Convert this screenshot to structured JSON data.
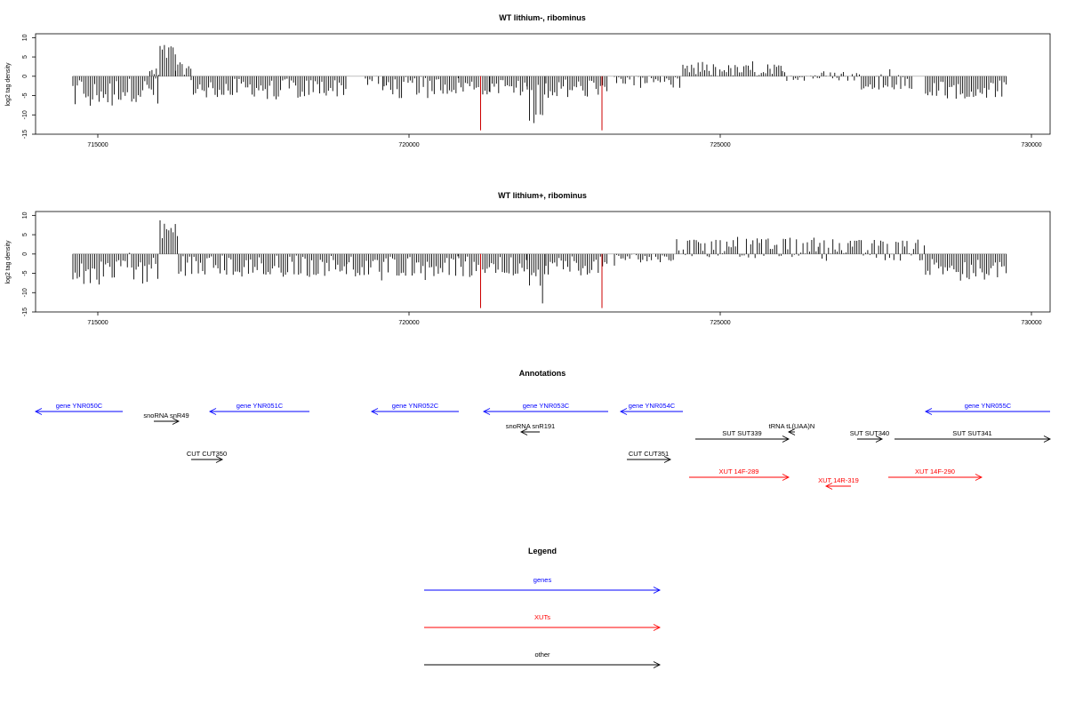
{
  "chart_data": [
    {
      "type": "bar",
      "title": "WT lithium-, ribominus",
      "ylabel": "log2 tag density",
      "xlabel": "",
      "xlim": [
        714000,
        730300
      ],
      "ylim": [
        -15,
        11
      ],
      "x_ticks": [
        715000,
        720000,
        725000,
        730000
      ],
      "x_tick_labels": [
        "715000",
        "720000",
        "725000",
        "730000"
      ],
      "y_ticks": [
        -15,
        -10,
        -5,
        0,
        5,
        10
      ],
      "y_tick_labels": [
        "-15",
        "-10",
        "-5",
        "0",
        "5",
        "10"
      ],
      "grid": false,
      "bar_color": "#000000",
      "highlight_color": "#cc0000",
      "segments": [
        {
          "start": 714600,
          "end": 716000,
          "min": -8,
          "max": 0,
          "avg": -3.5
        },
        {
          "start": 715800,
          "end": 716000,
          "min": 0,
          "max": 2.5,
          "avg": 1
        },
        {
          "start": 716000,
          "end": 716250,
          "min": 3,
          "max": 9,
          "avg": 6
        },
        {
          "start": 716250,
          "end": 716500,
          "min": 0,
          "max": 4,
          "avg": 2
        },
        {
          "start": 716500,
          "end": 719000,
          "min": -6,
          "max": 0,
          "avg": -3
        },
        {
          "start": 719300,
          "end": 719600,
          "min": -4,
          "max": 0,
          "avg": -1
        },
        {
          "start": 719600,
          "end": 720800,
          "min": -6,
          "max": 0,
          "avg": -2.5
        },
        {
          "start": 720800,
          "end": 721300,
          "min": -5,
          "max": 0,
          "avg": -2.5
        },
        {
          "start": 721300,
          "end": 721900,
          "min": -5,
          "max": 0,
          "avg": -2.5
        },
        {
          "start": 721900,
          "end": 722200,
          "min": -13,
          "max": 0,
          "avg": -7
        },
        {
          "start": 722200,
          "end": 723200,
          "min": -6,
          "max": 0,
          "avg": -3
        },
        {
          "start": 723300,
          "end": 724400,
          "min": -3,
          "max": 0,
          "avg": -1
        },
        {
          "start": 724400,
          "end": 726000,
          "min": 0,
          "max": 4,
          "avg": 1.5
        },
        {
          "start": 726000,
          "end": 727200,
          "min": -1.5,
          "max": 1.5,
          "avg": 0
        },
        {
          "start": 727200,
          "end": 728100,
          "min": -4,
          "max": 3,
          "avg": -0.5
        },
        {
          "start": 728300,
          "end": 729600,
          "min": -6,
          "max": 0,
          "avg": -3.5
        }
      ],
      "highlights": [
        {
          "x": 721150,
          "value": -14
        },
        {
          "x": 723100,
          "value": -14
        }
      ]
    },
    {
      "type": "bar",
      "title": "WT lithium+, ribominus",
      "ylabel": "log2 tag density",
      "xlabel": "",
      "xlim": [
        714000,
        730300
      ],
      "ylim": [
        -15,
        11
      ],
      "x_ticks": [
        715000,
        720000,
        725000,
        730000
      ],
      "x_tick_labels": [
        "715000",
        "720000",
        "725000",
        "730000"
      ],
      "y_ticks": [
        -15,
        -10,
        -5,
        0,
        5,
        10
      ],
      "y_tick_labels": [
        "-15",
        "-10",
        "-5",
        "0",
        "5",
        "10"
      ],
      "grid": false,
      "bar_color": "#000000",
      "highlight_color": "#cc0000",
      "segments": [
        {
          "start": 714600,
          "end": 716000,
          "min": -8,
          "max": 2,
          "avg": -3
        },
        {
          "start": 716000,
          "end": 716300,
          "min": 2,
          "max": 10,
          "avg": 6
        },
        {
          "start": 716300,
          "end": 719000,
          "min": -6,
          "max": 1,
          "avg": -3
        },
        {
          "start": 719000,
          "end": 720800,
          "min": -7,
          "max": 0,
          "avg": -3
        },
        {
          "start": 720800,
          "end": 721900,
          "min": -6,
          "max": 0,
          "avg": -3
        },
        {
          "start": 721900,
          "end": 722200,
          "min": -14,
          "max": 0,
          "avg": -8
        },
        {
          "start": 722200,
          "end": 723200,
          "min": -6,
          "max": 0,
          "avg": -3
        },
        {
          "start": 723300,
          "end": 724300,
          "min": -3,
          "max": 0,
          "avg": -1
        },
        {
          "start": 724300,
          "end": 726400,
          "min": -2,
          "max": 4.5,
          "avg": 1.5
        },
        {
          "start": 726400,
          "end": 726600,
          "min": 0,
          "max": 4.5,
          "avg": 2
        },
        {
          "start": 726600,
          "end": 728300,
          "min": -3,
          "max": 4,
          "avg": 1
        },
        {
          "start": 728300,
          "end": 729600,
          "min": -7,
          "max": 0,
          "avg": -3.5
        }
      ],
      "highlights": [
        {
          "x": 721150,
          "value": -14
        },
        {
          "x": 723100,
          "value": -14
        }
      ]
    }
  ],
  "annotations": {
    "title": "Annotations",
    "xlim": [
      714000,
      730300
    ],
    "features": [
      {
        "label": "gene YNR050C",
        "start": 714000,
        "end": 715400,
        "dir": "left",
        "row": 1,
        "color": "#0000ff"
      },
      {
        "label": "snoRNA snR49",
        "start": 715900,
        "end": 716300,
        "dir": "right",
        "row": 2,
        "color": "#000000"
      },
      {
        "label": "gene YNR051C",
        "start": 716800,
        "end": 718400,
        "dir": "left",
        "row": 1,
        "color": "#0000ff"
      },
      {
        "label": "gene YNR052C",
        "start": 719400,
        "end": 720800,
        "dir": "left",
        "row": 1,
        "color": "#0000ff"
      },
      {
        "label": "gene YNR053C",
        "start": 721200,
        "end": 723200,
        "dir": "left",
        "row": 1,
        "color": "#0000ff"
      },
      {
        "label": "snoRNA snR191",
        "start": 721800,
        "end": 722100,
        "dir": "left",
        "row": 3,
        "color": "#000000"
      },
      {
        "label": "gene YNR054C",
        "start": 723400,
        "end": 724400,
        "dir": "left",
        "row": 1,
        "color": "#0000ff"
      },
      {
        "label": "CUT CUT350",
        "start": 716500,
        "end": 717000,
        "dir": "right",
        "row": 5,
        "color": "#000000"
      },
      {
        "label": "CUT CUT351",
        "start": 723500,
        "end": 724200,
        "dir": "right",
        "row": 5,
        "color": "#000000"
      },
      {
        "label": "SUT SUT339",
        "start": 724600,
        "end": 726100,
        "dir": "right",
        "row": 4,
        "color": "#000000"
      },
      {
        "label": "tRNA tL(UAA)N",
        "start": 726100,
        "end": 726200,
        "dir": "left",
        "row": 3,
        "color": "#000000"
      },
      {
        "label": "SUT SUT340",
        "start": 727200,
        "end": 727600,
        "dir": "right",
        "row": 4,
        "color": "#000000"
      },
      {
        "label": "SUT SUT341",
        "start": 727800,
        "end": 730300,
        "dir": "right",
        "row": 4,
        "color": "#000000"
      },
      {
        "label": "gene YNR055C",
        "start": 728300,
        "end": 730300,
        "dir": "left",
        "row": 1,
        "color": "#0000ff"
      },
      {
        "label": "XUT 14F-289",
        "start": 724500,
        "end": 726100,
        "dir": "right",
        "row": 6,
        "color": "#ff0000"
      },
      {
        "label": "XUT 14R-319",
        "start": 726700,
        "end": 727100,
        "dir": "left",
        "row": 7,
        "color": "#ff0000"
      },
      {
        "label": "XUT 14F-290",
        "start": 727700,
        "end": 729200,
        "dir": "right",
        "row": 6,
        "color": "#ff0000"
      }
    ]
  },
  "legend": {
    "title": "Legend",
    "items": [
      {
        "label": "genes",
        "color": "#0000ff"
      },
      {
        "label": "XUTs",
        "color": "#ff0000"
      },
      {
        "label": "other",
        "color": "#000000"
      }
    ]
  }
}
